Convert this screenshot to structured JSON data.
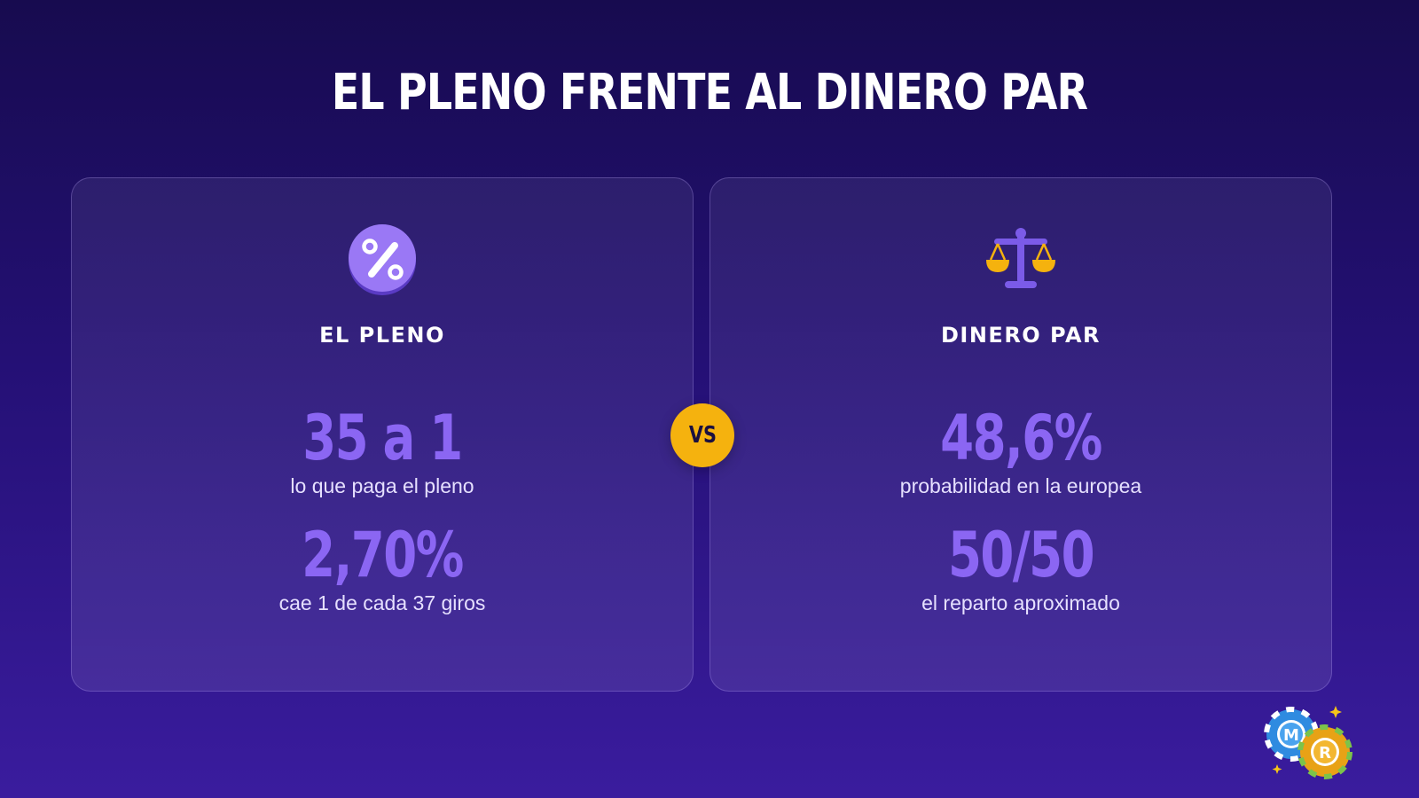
{
  "title": "EL PLENO FRENTE AL DINERO PAR",
  "vs_label": "VS",
  "colors": {
    "background_top": "#170b4f",
    "background_bottom": "#3a1c9e",
    "accent_purple": "#8b66f3",
    "accent_gold": "#f5b20e"
  },
  "left_card": {
    "icon": "percent-icon",
    "label": "EL PLENO",
    "stats": [
      {
        "value": "35 a 1",
        "description": "lo que paga el pleno"
      },
      {
        "value": "2,70%",
        "description": "cae 1 de cada 37 giros"
      }
    ]
  },
  "right_card": {
    "icon": "balance-scale-icon",
    "label": "DINERO PAR",
    "stats": [
      {
        "value": "48,6%",
        "description": "probabilidad en la europea"
      },
      {
        "value": "50/50",
        "description": "el reparto aproximado"
      }
    ]
  },
  "logo": {
    "icon": "casino-chips-logo-icon",
    "letters": [
      "M",
      "R"
    ]
  }
}
